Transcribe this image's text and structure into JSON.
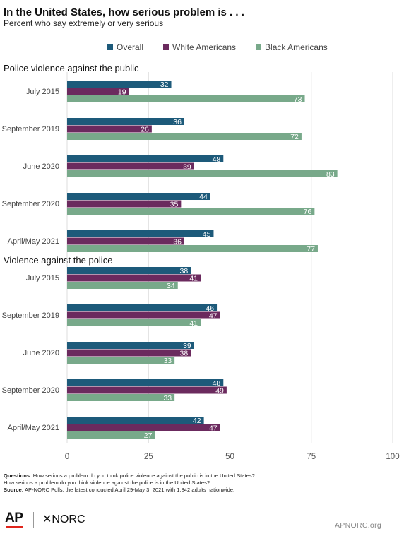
{
  "title": "In the United States, how serious problem is . . .",
  "subtitle": "Percent who say extremely or very serious",
  "notes": {
    "questions_label": "Questions:",
    "question_1": "How serious a problem do you think police violence against the public is in the United States?",
    "question_2": "How serious a problem do you think violence against the police is in the United States?",
    "source_label": "Source:",
    "source_text": "AP-NORC Polls, the latest conducted April 29-May 3, 2021 with 1,842 adults nationwide."
  },
  "logos": {
    "ap": "AP",
    "norc": "✕NORC"
  },
  "site": "APNORC.org",
  "colors": {
    "overall": "#1d5a7a",
    "white": "#6b2a5e",
    "black": "#78a98a",
    "grid": "#dcdcdc"
  },
  "chart_data": [
    {
      "type": "bar",
      "orientation": "horizontal",
      "title": "Police violence against the public",
      "categories": [
        "July 2015",
        "September 2019",
        "June 2020",
        "September 2020",
        "April/May 2021"
      ],
      "series": [
        {
          "name": "Overall",
          "values": [
            32,
            36,
            48,
            44,
            45
          ]
        },
        {
          "name": "White Americans",
          "values": [
            19,
            26,
            39,
            35,
            36
          ]
        },
        {
          "name": "Black Americans",
          "values": [
            73,
            72,
            83,
            76,
            77
          ]
        }
      ],
      "xlim": [
        0,
        100
      ],
      "ticks": [
        0,
        25,
        50,
        75,
        100
      ],
      "grid": true,
      "legend": "top-center"
    },
    {
      "type": "bar",
      "orientation": "horizontal",
      "title": "Violence against the police",
      "categories": [
        "July 2015",
        "September 2019",
        "June 2020",
        "September 2020",
        "April/May 2021"
      ],
      "series": [
        {
          "name": "Overall",
          "values": [
            38,
            46,
            39,
            48,
            42
          ]
        },
        {
          "name": "White Americans",
          "values": [
            41,
            47,
            38,
            49,
            47
          ]
        },
        {
          "name": "Black Americans",
          "values": [
            34,
            41,
            33,
            33,
            27
          ]
        }
      ],
      "xlim": [
        0,
        100
      ],
      "ticks": [
        0,
        25,
        50,
        75,
        100
      ],
      "grid": true,
      "legend": "top-center"
    }
  ]
}
